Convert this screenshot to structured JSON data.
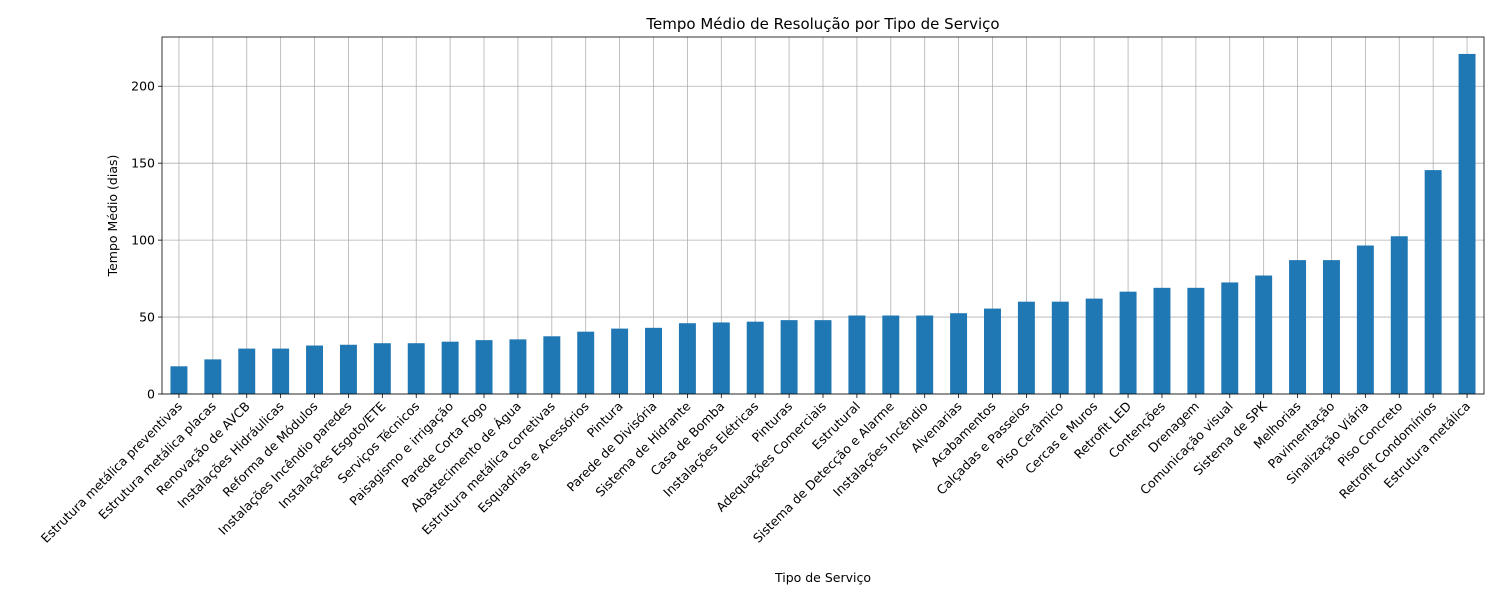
{
  "chart_data": {
    "type": "bar",
    "title": "Tempo Médio de Resolução por Tipo de Serviço",
    "xlabel": "Tipo de Serviço",
    "ylabel": "Tempo Médio (dias)",
    "ylim": [
      0,
      232
    ],
    "yticks": [
      0,
      50,
      100,
      150,
      200
    ],
    "grid": true,
    "bar_color": "#1f77b4",
    "categories": [
      "Estrutura metálica preventivas",
      "Estrutura metálica placas",
      "Renovação de AVCB",
      "Instalações Hidráulicas",
      "Reforma de Módulos",
      "Instalações Incêndio paredes",
      "Instalações Esgoto/ETE",
      "Serviços Técnicos",
      "Paisagismo e irrigação",
      "Parede Corta Fogo",
      "Abastecimento de Água",
      "Estrutura metálica corretivas",
      "Esquadrias e Acessórios",
      "Pintura",
      "Parede de Divisória",
      "Sistema de Hidrante",
      "Casa de Bomba",
      "Instalações Elétricas",
      "Pinturas",
      "Adequações Comerciais",
      "Estrutural",
      "Sistema de Detecção e Alarme",
      "Instalações Incêndio",
      "Alvenarias",
      "Acabamentos",
      "Calçadas e Passeios",
      "Piso Cerâmico",
      "Cercas e Muros",
      "Retrofit LED",
      "Contenções",
      "Drenagem",
      "Comunicação visual",
      "Sistema de SPK",
      "Melhorias",
      "Pavimentação",
      "Sinalização Viária",
      "Piso Concreto",
      "Retrofit Condomínios",
      "Estrutura metálica"
    ],
    "values": [
      18,
      22.5,
      29.5,
      29.5,
      31.5,
      32,
      33,
      33,
      34,
      35,
      35.5,
      37.5,
      40.5,
      42.5,
      43,
      46,
      46.5,
      47,
      48,
      48,
      51,
      51,
      51,
      52.5,
      55.5,
      60,
      60,
      62,
      66.5,
      69,
      69,
      72.5,
      77,
      87,
      87,
      96.5,
      102.5,
      145.5,
      221
    ]
  }
}
